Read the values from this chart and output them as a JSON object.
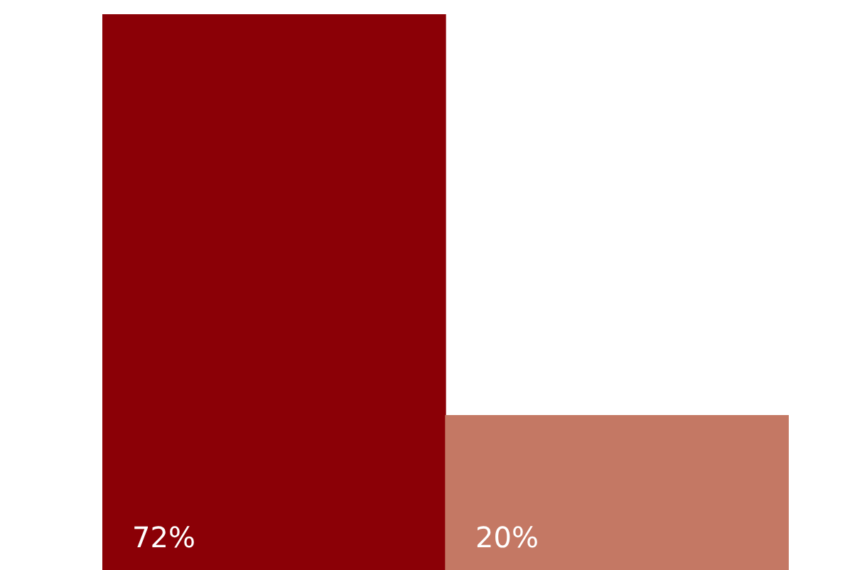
{
  "chart_data": {
    "type": "bar",
    "categories": [
      null,
      null
    ],
    "values": [
      72,
      20
    ],
    "colors": [
      "#8b0006",
      "#c47864"
    ],
    "value_labels": [
      "72%",
      "20%"
    ],
    "ylim": [
      0,
      72
    ]
  }
}
